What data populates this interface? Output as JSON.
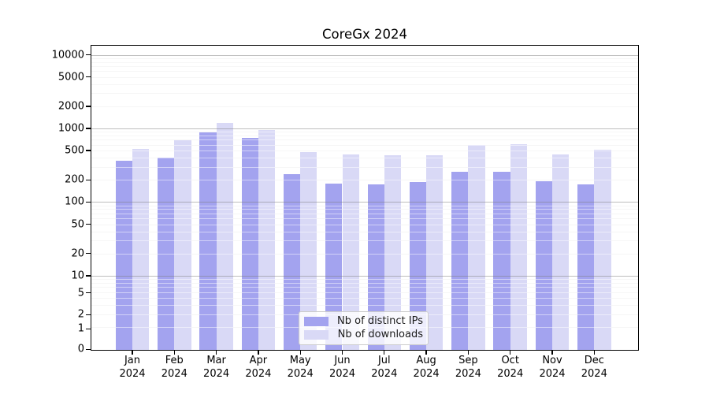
{
  "chart_data": {
    "type": "bar",
    "title": "CoreGx 2024",
    "categories": [
      "Jan 2024",
      "Feb 2024",
      "Mar 2024",
      "Apr 2024",
      "May 2024",
      "Jun 2024",
      "Jul 2024",
      "Aug 2024",
      "Sep 2024",
      "Oct 2024",
      "Nov 2024",
      "Dec 2024"
    ],
    "x_tick_line1": [
      "Jan",
      "Feb",
      "Mar",
      "Apr",
      "May",
      "Jun",
      "Jul",
      "Aug",
      "Sep",
      "Oct",
      "Nov",
      "Dec"
    ],
    "x_tick_line2": "2024",
    "series": [
      {
        "name": "Nb of distinct IPs",
        "color": "#a3a3ef",
        "values": [
          360,
          405,
          880,
          745,
          240,
          180,
          175,
          185,
          260,
          255,
          190,
          175
        ]
      },
      {
        "name": "Nb of downloads",
        "color": "#d9d9f6",
        "values": [
          525,
          690,
          1200,
          950,
          475,
          445,
          430,
          430,
          590,
          605,
          445,
          510
        ]
      }
    ],
    "yscale": "symlog",
    "ylim": [
      0,
      13500
    ],
    "y_tick_labels": [
      "10000",
      "5000",
      "2000",
      "1000",
      "500",
      "200",
      "100",
      "50",
      "20",
      "10",
      "5",
      "2",
      "1",
      "0"
    ],
    "grid": true,
    "legend_position": "lower center",
    "xlabel": "",
    "ylabel": ""
  }
}
